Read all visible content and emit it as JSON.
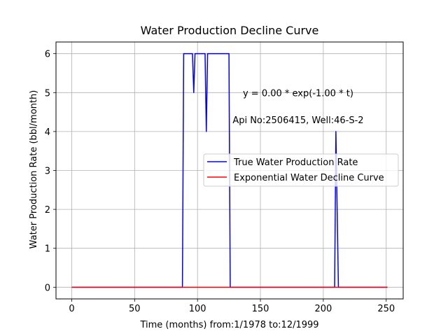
{
  "chart_data": {
    "type": "line",
    "title": "Water Production Decline Curve",
    "xlabel": "Time (months) from:1/1978 to:12/1999",
    "ylabel": "Water Production Rate (bbl/month)",
    "xlim": [
      -12.5,
      263.5
    ],
    "ylim": [
      -0.3,
      6.3
    ],
    "xticks": [
      0,
      50,
      100,
      150,
      200,
      250
    ],
    "yticks": [
      0,
      1,
      2,
      3,
      4,
      5,
      6
    ],
    "grid": true,
    "legend_position": "center-right",
    "annotations": [
      {
        "text": "y = 0.00 * exp(-1.00 * t)",
        "x": 180,
        "y": 5.0
      },
      {
        "text": "Api No:2506415, Well:46-S-2",
        "x": 180,
        "y": 4.3
      }
    ],
    "series": [
      {
        "name": "True Water Production Rate",
        "color": "#0000ff",
        "points": [
          [
            0,
            0
          ],
          [
            88,
            0
          ],
          [
            89,
            6
          ],
          [
            96,
            6
          ],
          [
            97,
            5
          ],
          [
            98,
            6
          ],
          [
            106,
            6
          ],
          [
            107,
            4
          ],
          [
            108,
            6
          ],
          [
            125,
            6
          ],
          [
            126,
            0
          ],
          [
            209,
            0
          ],
          [
            210,
            4
          ],
          [
            212,
            0
          ],
          [
            251,
            0
          ]
        ]
      },
      {
        "name": "Exponential Water Decline Curve",
        "color": "#ff0000",
        "points": [
          [
            0,
            0
          ],
          [
            251,
            0
          ]
        ]
      }
    ]
  }
}
